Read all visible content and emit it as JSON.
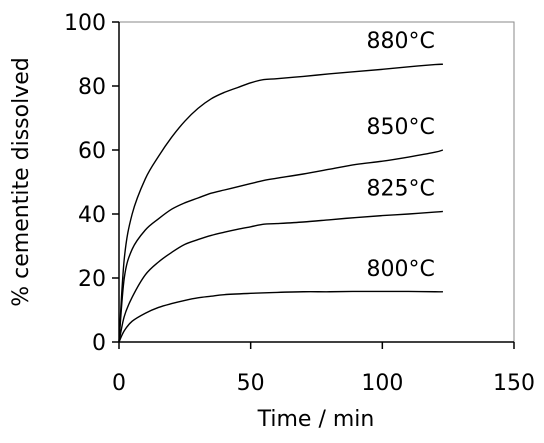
{
  "chart_data": {
    "type": "line",
    "title": "",
    "xlabel": "Time / min",
    "ylabel": "% cementite dissolved",
    "xlim": [
      0,
      150
    ],
    "ylim": [
      0,
      100
    ],
    "xticks": [
      0,
      50,
      100,
      150
    ],
    "yticks": [
      0,
      20,
      40,
      60,
      80,
      100
    ],
    "grid": false,
    "legend": "none",
    "line_color": "#000000",
    "series": [
      {
        "name": "880°C",
        "x": [
          0,
          2,
          5,
          10,
          15,
          20,
          25,
          30,
          35,
          40,
          45,
          50,
          55,
          60,
          70,
          80,
          90,
          100,
          110,
          120,
          123
        ],
        "y": [
          0,
          26,
          40,
          51,
          58,
          64,
          69,
          73,
          76,
          78,
          79.5,
          81,
          82,
          82.3,
          83,
          83.8,
          84.5,
          85.2,
          86,
          86.7,
          86.8
        ]
      },
      {
        "name": "850°C",
        "x": [
          0,
          2,
          5,
          10,
          15,
          20,
          25,
          30,
          35,
          40,
          45,
          50,
          55,
          60,
          70,
          80,
          90,
          100,
          110,
          120,
          123
        ],
        "y": [
          0,
          20,
          29,
          35,
          38.5,
          41.5,
          43.5,
          45,
          46.5,
          47.5,
          48.5,
          49.5,
          50.5,
          51.2,
          52.5,
          54,
          55.5,
          56.5,
          57.8,
          59.3,
          60
        ]
      },
      {
        "name": "825°C",
        "x": [
          0,
          2,
          5,
          10,
          15,
          20,
          25,
          30,
          35,
          40,
          45,
          50,
          55,
          60,
          70,
          80,
          90,
          100,
          110,
          120,
          123
        ],
        "y": [
          0,
          8,
          14,
          21,
          25,
          28,
          30.5,
          32,
          33.3,
          34.3,
          35.2,
          36,
          36.8,
          37,
          37.5,
          38.2,
          38.9,
          39.5,
          40,
          40.6,
          40.8
        ]
      },
      {
        "name": "800°C",
        "x": [
          0,
          2,
          5,
          10,
          15,
          20,
          25,
          30,
          35,
          40,
          50,
          60,
          70,
          80,
          90,
          100,
          110,
          120,
          123
        ],
        "y": [
          0,
          3.5,
          6.5,
          9,
          10.8,
          12,
          13,
          13.8,
          14.3,
          14.8,
          15.2,
          15.5,
          15.7,
          15.7,
          15.8,
          15.8,
          15.8,
          15.7,
          15.7
        ]
      }
    ]
  }
}
